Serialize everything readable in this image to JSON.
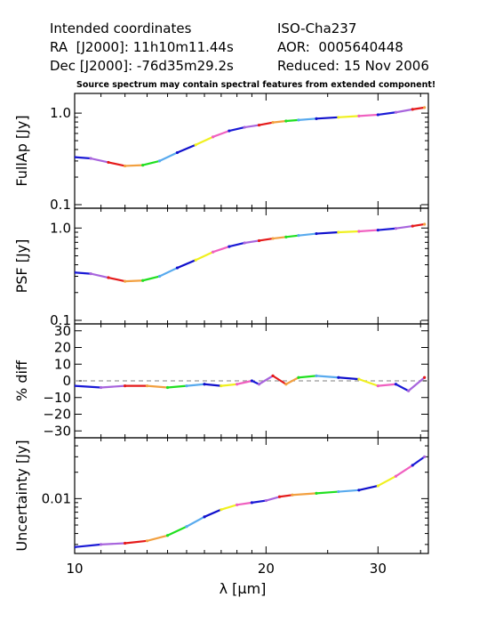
{
  "header": {
    "left": [
      "Intended coordinates",
      "RA  [J2000]: 11h10m11.44s",
      "Dec [J2000]: -76d35m29.2s"
    ],
    "right": [
      "ISO-Cha237",
      "AOR:  0005640448",
      "Reduced: 15 Nov 2006"
    ],
    "warning": "Source spectrum may contain spectral features from extended component!"
  },
  "chart_data": {
    "type": "line",
    "xlabel": "λ [μm]",
    "xlim": [
      10,
      36
    ],
    "xscale": "log",
    "xticks": [
      10,
      20,
      30
    ],
    "xtick_labels": [
      "10",
      "20",
      "30"
    ],
    "segment_colors": [
      "#1a1ad6",
      "#a865dd",
      "#e51a1a",
      "#f2a040",
      "#20e020",
      "#58aaee",
      "#1010cc",
      "#f0f020",
      "#f060c0"
    ],
    "panels": [
      {
        "id": "fullap",
        "ylabel": "FullAp [Jy]",
        "yscale": "log",
        "ylim": [
          0.1,
          1.5
        ],
        "ytick_labels": [
          "0.1",
          "1.0"
        ],
        "yticks": [
          0.1,
          1.0
        ],
        "points": [
          [
            10,
            0.33
          ],
          [
            10.6,
            0.32
          ],
          [
            11.3,
            0.29
          ],
          [
            12,
            0.265
          ],
          [
            12.8,
            0.27
          ],
          [
            13.6,
            0.3
          ],
          [
            14.5,
            0.37
          ],
          [
            15.5,
            0.45
          ],
          [
            16.5,
            0.55
          ],
          [
            17.5,
            0.64
          ],
          [
            18.5,
            0.7
          ],
          [
            19.5,
            0.74
          ],
          [
            20.5,
            0.79
          ],
          [
            21.5,
            0.82
          ],
          [
            22.5,
            0.84
          ],
          [
            24,
            0.87
          ],
          [
            26,
            0.9
          ],
          [
            28,
            0.93
          ],
          [
            30,
            0.96
          ],
          [
            32,
            1.02
          ],
          [
            34,
            1.1
          ],
          [
            35.5,
            1.15
          ]
        ]
      },
      {
        "id": "psf",
        "ylabel": "PSF [Jy]",
        "yscale": "log",
        "ylim": [
          0.1,
          1.5
        ],
        "ytick_labels": [
          "0.1",
          "1.0"
        ],
        "yticks": [
          0.1,
          1.0
        ],
        "points": [
          [
            10,
            0.33
          ],
          [
            10.6,
            0.32
          ],
          [
            11.3,
            0.29
          ],
          [
            12,
            0.265
          ],
          [
            12.8,
            0.27
          ],
          [
            13.6,
            0.3
          ],
          [
            14.5,
            0.37
          ],
          [
            15.5,
            0.45
          ],
          [
            16.5,
            0.55
          ],
          [
            17.5,
            0.63
          ],
          [
            18.5,
            0.69
          ],
          [
            19.5,
            0.73
          ],
          [
            20.5,
            0.77
          ],
          [
            21.5,
            0.8
          ],
          [
            22.5,
            0.83
          ],
          [
            24,
            0.87
          ],
          [
            26,
            0.9
          ],
          [
            28,
            0.92
          ],
          [
            30,
            0.95
          ],
          [
            32,
            0.99
          ],
          [
            34,
            1.05
          ],
          [
            35.5,
            1.1
          ]
        ]
      },
      {
        "id": "pctdiff",
        "ylabel": "% diff",
        "yscale": "linear",
        "ylim": [
          -32,
          32
        ],
        "ytick_labels": [
          "30",
          "20",
          "10",
          "0",
          "−10",
          "−20",
          "−30"
        ],
        "yticks": [
          30,
          20,
          10,
          0,
          -10,
          -20,
          -30
        ],
        "reference_line": 0,
        "points": [
          [
            10,
            -3
          ],
          [
            11,
            -4
          ],
          [
            12,
            -3
          ],
          [
            13,
            -3
          ],
          [
            14,
            -4
          ],
          [
            15,
            -3
          ],
          [
            16,
            -2
          ],
          [
            17,
            -3
          ],
          [
            18,
            -2
          ],
          [
            19,
            0
          ],
          [
            19.5,
            -2
          ],
          [
            20.5,
            3
          ],
          [
            21.5,
            -2
          ],
          [
            22.5,
            2
          ],
          [
            24,
            3
          ],
          [
            26,
            2
          ],
          [
            28,
            1
          ],
          [
            30,
            -3
          ],
          [
            32,
            -2
          ],
          [
            33.5,
            -6
          ],
          [
            35.5,
            2
          ]
        ]
      },
      {
        "id": "uncert",
        "ylabel": "Uncertainty [Jy]",
        "yscale": "log",
        "ylim": [
          0.0026,
          0.045
        ],
        "ytick_labels": [
          "0.01"
        ],
        "yticks": [
          0.01
        ],
        "points": [
          [
            10,
            0.0028
          ],
          [
            11,
            0.003
          ],
          [
            12,
            0.0031
          ],
          [
            13,
            0.0033
          ],
          [
            14,
            0.0038
          ],
          [
            15,
            0.0048
          ],
          [
            16,
            0.0062
          ],
          [
            17,
            0.0075
          ],
          [
            18,
            0.0085
          ],
          [
            19,
            0.009
          ],
          [
            20,
            0.0095
          ],
          [
            21,
            0.0105
          ],
          [
            22,
            0.011
          ],
          [
            24,
            0.0115
          ],
          [
            26,
            0.012
          ],
          [
            28,
            0.0125
          ],
          [
            30,
            0.014
          ],
          [
            32,
            0.018
          ],
          [
            34,
            0.024
          ],
          [
            35.5,
            0.03
          ]
        ]
      }
    ]
  }
}
